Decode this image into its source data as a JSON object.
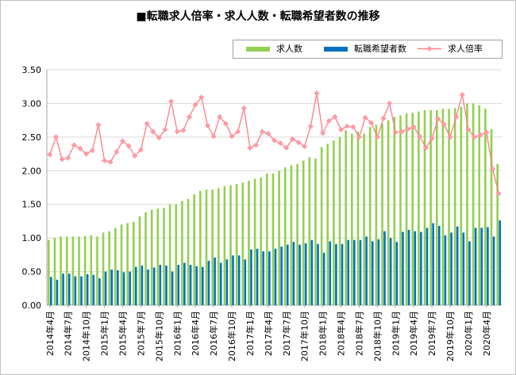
{
  "chart_data": {
    "type": "bar",
    "title": "■転職求人倍率・求人人数・転職希望者数の推移",
    "ylim": [
      0,
      3.5
    ],
    "yticks": [
      "0.00",
      "0.50",
      "1.00",
      "1.50",
      "2.00",
      "2.50",
      "3.00",
      "3.50"
    ],
    "grid": true,
    "legend_position": "top-right",
    "legend": [
      "求人数",
      "転職希望者数",
      "求人倍率"
    ],
    "colors": {
      "jobs": "#92d050",
      "seekers": "#0070c0",
      "ratio": "#ff7c80",
      "ratio_marker": "#ff9aa2"
    },
    "x_tick_labels": [
      "2014年4月",
      "2014年7月",
      "2014年10月",
      "2015年1月",
      "2015年4月",
      "2015年7月",
      "2015年10月",
      "2016年1月",
      "2016年4月",
      "2016年7月",
      "2016年10月",
      "2017年1月",
      "2017年4月",
      "2017年7月",
      "2017年10月",
      "2018年1月",
      "2018年4月",
      "2018年7月",
      "2018年10月",
      "2019年1月",
      "2019年4月",
      "2019年7月",
      "2019年10月",
      "2020年1月",
      "2020年4月"
    ],
    "x": [
      "2014-04",
      "2014-05",
      "2014-06",
      "2014-07",
      "2014-08",
      "2014-09",
      "2014-10",
      "2014-11",
      "2014-12",
      "2015-01",
      "2015-02",
      "2015-03",
      "2015-04",
      "2015-05",
      "2015-06",
      "2015-07",
      "2015-08",
      "2015-09",
      "2015-10",
      "2015-11",
      "2015-12",
      "2016-01",
      "2016-02",
      "2016-03",
      "2016-04",
      "2016-05",
      "2016-06",
      "2016-07",
      "2016-08",
      "2016-09",
      "2016-10",
      "2016-11",
      "2016-12",
      "2017-01",
      "2017-02",
      "2017-03",
      "2017-04",
      "2017-05",
      "2017-06",
      "2017-07",
      "2017-08",
      "2017-09",
      "2017-10",
      "2017-11",
      "2017-12",
      "2018-01",
      "2018-02",
      "2018-03",
      "2018-04",
      "2018-05",
      "2018-06",
      "2018-07",
      "2018-08",
      "2018-09",
      "2018-10",
      "2018-11",
      "2018-12",
      "2019-01",
      "2019-02",
      "2019-03",
      "2019-04",
      "2019-05",
      "2019-06",
      "2019-07",
      "2019-08",
      "2019-09",
      "2019-10",
      "2019-11",
      "2019-12",
      "2020-01",
      "2020-02",
      "2020-03",
      "2020-04",
      "2020-05",
      "2020-06"
    ],
    "series": [
      {
        "name": "求人数",
        "type": "bar",
        "values": [
          0.97,
          1.0,
          1.02,
          1.02,
          1.02,
          1.02,
          1.03,
          1.04,
          1.02,
          1.08,
          1.1,
          1.15,
          1.2,
          1.22,
          1.24,
          1.32,
          1.38,
          1.42,
          1.44,
          1.45,
          1.5,
          1.5,
          1.55,
          1.58,
          1.65,
          1.7,
          1.72,
          1.72,
          1.74,
          1.77,
          1.78,
          1.8,
          1.82,
          1.85,
          1.88,
          1.9,
          1.96,
          1.96,
          2.0,
          2.05,
          2.08,
          2.1,
          2.15,
          2.2,
          2.18,
          2.35,
          2.4,
          2.45,
          2.5,
          2.6,
          2.55,
          2.58,
          2.55,
          2.65,
          2.68,
          2.7,
          2.75,
          2.8,
          2.82,
          2.85,
          2.86,
          2.88,
          2.9,
          2.9,
          2.9,
          2.92,
          2.92,
          2.93,
          2.95,
          3.0,
          3.0,
          2.97,
          2.92,
          2.62,
          2.1
        ]
      },
      {
        "name": "転職希望者数",
        "type": "bar",
        "values": [
          0.42,
          0.38,
          0.47,
          0.47,
          0.43,
          0.43,
          0.46,
          0.45,
          0.4,
          0.5,
          0.53,
          0.52,
          0.49,
          0.5,
          0.57,
          0.59,
          0.53,
          0.56,
          0.6,
          0.59,
          0.5,
          0.6,
          0.63,
          0.6,
          0.58,
          0.57,
          0.66,
          0.71,
          0.63,
          0.68,
          0.74,
          0.74,
          0.68,
          0.83,
          0.84,
          0.8,
          0.8,
          0.84,
          0.87,
          0.9,
          0.94,
          0.9,
          0.92,
          0.97,
          0.91,
          0.78,
          0.95,
          0.91,
          0.91,
          0.97,
          0.97,
          0.97,
          1.02,
          0.95,
          0.98,
          1.1,
          1.0,
          0.94,
          1.09,
          1.12,
          1.1,
          1.09,
          1.15,
          1.22,
          1.18,
          1.04,
          1.08,
          1.17,
          1.08,
          0.95,
          1.15,
          1.15,
          1.16,
          1.02,
          1.26
        ]
      },
      {
        "name": "求人倍率",
        "type": "line",
        "values": [
          2.24,
          2.5,
          2.17,
          2.19,
          2.38,
          2.33,
          2.25,
          2.3,
          2.68,
          2.15,
          2.13,
          2.28,
          2.44,
          2.37,
          2.22,
          2.31,
          2.7,
          2.58,
          2.49,
          2.61,
          3.03,
          2.58,
          2.6,
          2.8,
          2.98,
          3.09,
          2.67,
          2.51,
          2.8,
          2.7,
          2.51,
          2.58,
          2.93,
          2.34,
          2.38,
          2.58,
          2.55,
          2.45,
          2.41,
          2.34,
          2.47,
          2.42,
          2.36,
          2.66,
          3.15,
          2.56,
          2.74,
          2.8,
          2.61,
          2.66,
          2.65,
          2.5,
          2.79,
          2.71,
          2.5,
          2.78,
          3.0,
          2.57,
          2.58,
          2.62,
          2.65,
          2.51,
          2.34,
          2.48,
          2.77,
          2.69,
          2.5,
          2.8,
          3.13,
          2.61,
          2.5,
          2.53,
          2.57,
          2.03,
          1.66
        ]
      }
    ]
  }
}
